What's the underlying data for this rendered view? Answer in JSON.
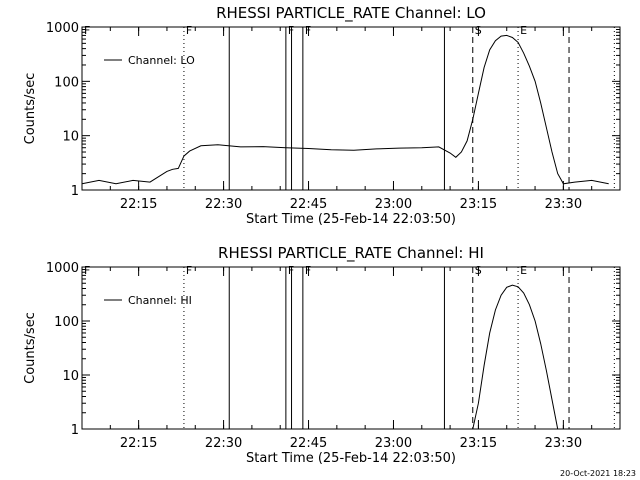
{
  "chart_data": [
    {
      "type": "line",
      "title": "RHESSI PARTICLE_RATE Channel: LO",
      "xlabel": "Start Time (25-Feb-14 22:03:50)",
      "ylabel": "Counts/sec",
      "yscale": "log",
      "ylim": [
        1,
        1000
      ],
      "xlim": [
        "22:05",
        "23:40"
      ],
      "x_ticks": [
        "22:15",
        "22:30",
        "22:45",
        "23:00",
        "23:15",
        "23:30"
      ],
      "y_ticks": [
        "1",
        "10",
        "100",
        "1000"
      ],
      "grid": false,
      "legend": {
        "placement": "upper-left",
        "entries": [
          "Channel: LO"
        ]
      },
      "markers": [
        {
          "label": "F",
          "time": "22:05",
          "style": "dotted"
        },
        {
          "label": "F",
          "time": "22:23",
          "style": "dotted"
        },
        {
          "label": "",
          "time": "22:31",
          "style": "solid"
        },
        {
          "label": "F",
          "time": "22:41",
          "style": "solid"
        },
        {
          "label": "",
          "time": "22:42",
          "style": "solid"
        },
        {
          "label": "F",
          "time": "22:44",
          "style": "solid"
        },
        {
          "label": "",
          "time": "23:09",
          "style": "solid"
        },
        {
          "label": "S",
          "time": "23:14",
          "style": "dashed"
        },
        {
          "label": "E",
          "time": "23:22",
          "style": "dotted"
        },
        {
          "label": "",
          "time": "23:31",
          "style": "dashed"
        },
        {
          "label": "",
          "time": "23:39",
          "style": "dotted"
        }
      ],
      "series": [
        {
          "x": [
            "22:05",
            "22:08",
            "22:11",
            "22:14",
            "22:17",
            "22:20",
            "22:21",
            "22:22",
            "22:23",
            "22:24",
            "22:26",
            "22:29",
            "22:33",
            "22:37",
            "22:41",
            "22:45",
            "22:49",
            "22:53",
            "22:57",
            "23:01",
            "23:05",
            "23:08",
            "23:10",
            "23:11",
            "23:12",
            "23:13",
            "23:14",
            "23:15",
            "23:16",
            "23:17",
            "23:18",
            "23:19",
            "23:20",
            "23:21",
            "23:22",
            "23:23",
            "23:24",
            "23:25",
            "23:26",
            "23:27",
            "23:28",
            "23:29",
            "23:30",
            "23:32",
            "23:35",
            "23:38"
          ],
          "y": [
            1.3,
            1.5,
            1.3,
            1.5,
            1.4,
            2.2,
            2.4,
            2.5,
            4.2,
            5.2,
            6.5,
            6.8,
            6.2,
            6.3,
            6.0,
            5.8,
            5.5,
            5.4,
            5.7,
            5.9,
            6.0,
            6.2,
            4.8,
            4.0,
            5.0,
            8.0,
            20,
            60,
            180,
            380,
            560,
            680,
            700,
            640,
            520,
            330,
            190,
            100,
            40,
            14,
            5,
            2,
            1.3,
            1.4,
            1.5,
            1.3
          ]
        }
      ]
    },
    {
      "type": "line",
      "title": "RHESSI PARTICLE_RATE Channel: HI",
      "xlabel": "Start Time (25-Feb-14 22:03:50)",
      "ylabel": "Counts/sec",
      "yscale": "log",
      "ylim": [
        1,
        1000
      ],
      "xlim": [
        "22:05",
        "23:40"
      ],
      "x_ticks": [
        "22:15",
        "22:30",
        "22:45",
        "23:00",
        "23:15",
        "23:30"
      ],
      "y_ticks": [
        "1",
        "10",
        "100",
        "1000"
      ],
      "grid": false,
      "legend": {
        "placement": "upper-left",
        "entries": [
          "Channel: HI"
        ]
      },
      "markers": [
        {
          "label": "F",
          "time": "22:05",
          "style": "dotted"
        },
        {
          "label": "F",
          "time": "22:23",
          "style": "dotted"
        },
        {
          "label": "",
          "time": "22:31",
          "style": "solid"
        },
        {
          "label": "F",
          "time": "22:41",
          "style": "solid"
        },
        {
          "label": "",
          "time": "22:42",
          "style": "solid"
        },
        {
          "label": "F",
          "time": "22:44",
          "style": "solid"
        },
        {
          "label": "",
          "time": "23:09",
          "style": "solid"
        },
        {
          "label": "S",
          "time": "23:14",
          "style": "dashed"
        },
        {
          "label": "E",
          "time": "23:22",
          "style": "dotted"
        },
        {
          "label": "",
          "time": "23:31",
          "style": "dashed"
        },
        {
          "label": "",
          "time": "23:39",
          "style": "dotted"
        }
      ],
      "series": [
        {
          "x": [
            "23:14",
            "23:15",
            "23:16",
            "23:17",
            "23:18",
            "23:19",
            "23:20",
            "23:21",
            "23:22",
            "23:23",
            "23:24",
            "23:25",
            "23:26",
            "23:27",
            "23:28",
            "23:29"
          ],
          "y": [
            1.0,
            3.0,
            15,
            60,
            160,
            300,
            420,
            460,
            430,
            330,
            200,
            100,
            38,
            12,
            3.5,
            1.0
          ]
        }
      ]
    }
  ],
  "footer": {
    "timestamp": "20-Oct-2021 18:23"
  }
}
